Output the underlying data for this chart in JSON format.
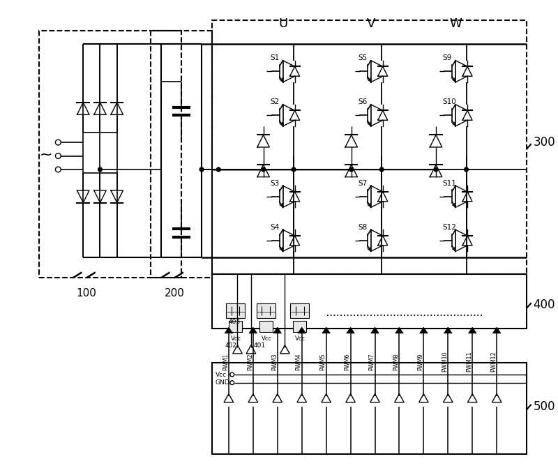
{
  "bg_color": "#ffffff",
  "lc": "#000000",
  "fig_w": 8.0,
  "fig_h": 6.81,
  "label_100": "100",
  "label_200": "200",
  "label_300": "300",
  "label_400": "400",
  "label_500": "500",
  "label_U": "U",
  "label_V": "V",
  "label_W": "W",
  "switch_labels_U": [
    "S1",
    "S2",
    "S3",
    "S4"
  ],
  "switch_labels_V": [
    "S5",
    "S6",
    "S7",
    "S8"
  ],
  "switch_labels_W": [
    "S9",
    "S10",
    "S11",
    "S12"
  ],
  "pwm_labels": [
    "PWM1",
    "PWM2",
    "PWM3",
    "PWM4",
    "PWM5",
    "PWM6",
    "PWM7",
    "PWM8",
    "PWM9",
    "PWM10",
    "PWM11",
    "PWM12"
  ],
  "label_403": "403",
  "label_402": "402",
  "label_401": "401",
  "label_vcc": "Vcc",
  "label_gnd": "GND"
}
